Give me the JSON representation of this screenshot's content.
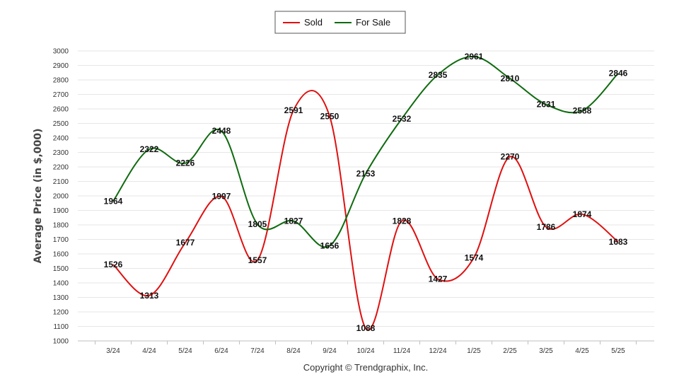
{
  "chart_data": {
    "type": "line",
    "categories": [
      "3/24",
      "4/24",
      "5/24",
      "6/24",
      "7/24",
      "8/24",
      "9/24",
      "10/24",
      "11/24",
      "12/24",
      "1/25",
      "2/25",
      "3/25",
      "4/25",
      "5/25"
    ],
    "series": [
      {
        "name": "Sold",
        "color": "#e01010",
        "values": [
          1526,
          1313,
          1677,
          1997,
          1557,
          2591,
          2550,
          1088,
          1828,
          1427,
          1574,
          2270,
          1786,
          1874,
          1683
        ]
      },
      {
        "name": "For Sale",
        "color": "#0f6b0f",
        "values": [
          1964,
          2322,
          2226,
          2448,
          1805,
          1827,
          1656,
          2153,
          2532,
          2835,
          2961,
          2810,
          2631,
          2588,
          2846
        ]
      }
    ],
    "ylabel": "Average Price (in $,000)",
    "ylim": [
      1000,
      3000
    ],
    "ytick_step": 100,
    "grid": true,
    "legend_position": "top-center",
    "smooth_lines": true,
    "data_labels": true
  },
  "footer": {
    "copyright": "Copyright © Trendgraphix, Inc."
  }
}
